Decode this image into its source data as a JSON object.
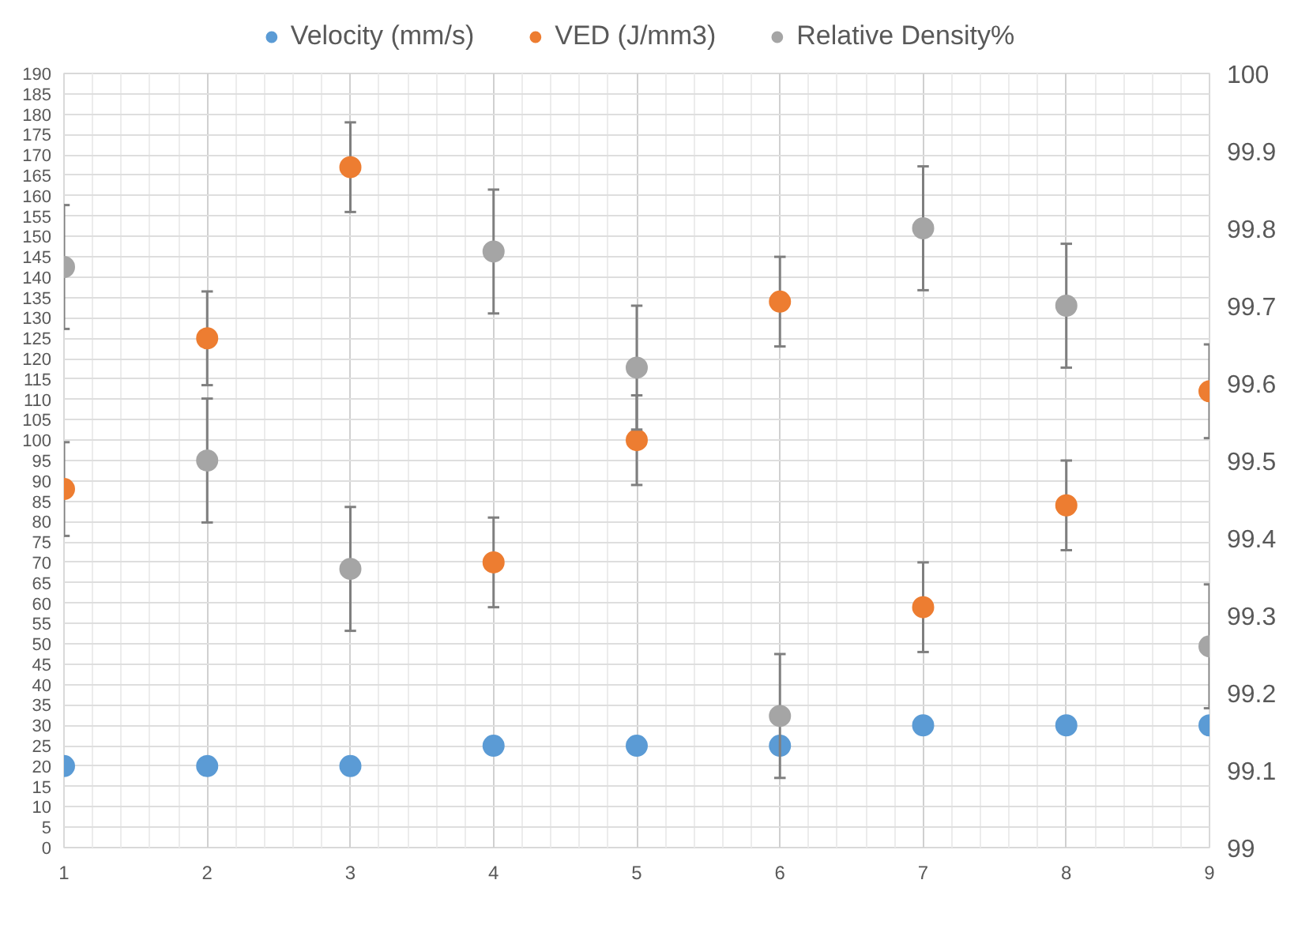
{
  "chart_data": {
    "type": "scatter",
    "x": [
      1,
      2,
      3,
      4,
      5,
      6,
      7,
      8,
      9
    ],
    "series": [
      {
        "name": "Velocity (mm/s)",
        "color": "#5b9bd5",
        "values": [
          20,
          20,
          20,
          25,
          25,
          25,
          30,
          30,
          30
        ]
      },
      {
        "name": "VED (J/mm3)",
        "color": "#ed7d31",
        "values": [
          88,
          125,
          167,
          70,
          100,
          134,
          59,
          84,
          112
        ],
        "errors": [
          11.5,
          11.5,
          11,
          11,
          11,
          11,
          11,
          11,
          11.5
        ]
      },
      {
        "name": "Relative Density%",
        "color": "#a5a5a5",
        "axis": "y2",
        "values": [
          99.75,
          99.5,
          99.36,
          99.77,
          99.62,
          99.17,
          99.8,
          99.7,
          99.26
        ],
        "errors": [
          0.08,
          0.08,
          0.08,
          0.08,
          0.08,
          0.08,
          0.08,
          0.08,
          0.08
        ]
      }
    ],
    "xlim": [
      1,
      9
    ],
    "xticks": [
      1,
      2,
      3,
      4,
      5,
      6,
      7,
      8,
      9
    ],
    "ylim": [
      0,
      190
    ],
    "yticks": [
      0,
      5,
      10,
      15,
      20,
      25,
      30,
      35,
      40,
      45,
      50,
      55,
      60,
      65,
      70,
      75,
      80,
      85,
      90,
      95,
      100,
      105,
      110,
      115,
      120,
      125,
      130,
      135,
      140,
      145,
      150,
      155,
      160,
      165,
      170,
      175,
      180,
      185,
      190
    ],
    "y2lim": [
      99,
      100
    ],
    "y2ticks": [
      99,
      99.1,
      99.2,
      99.3,
      99.4,
      99.5,
      99.6,
      99.7,
      99.8,
      99.9,
      100
    ],
    "grid": true,
    "legend": "top",
    "marker": "circle"
  }
}
